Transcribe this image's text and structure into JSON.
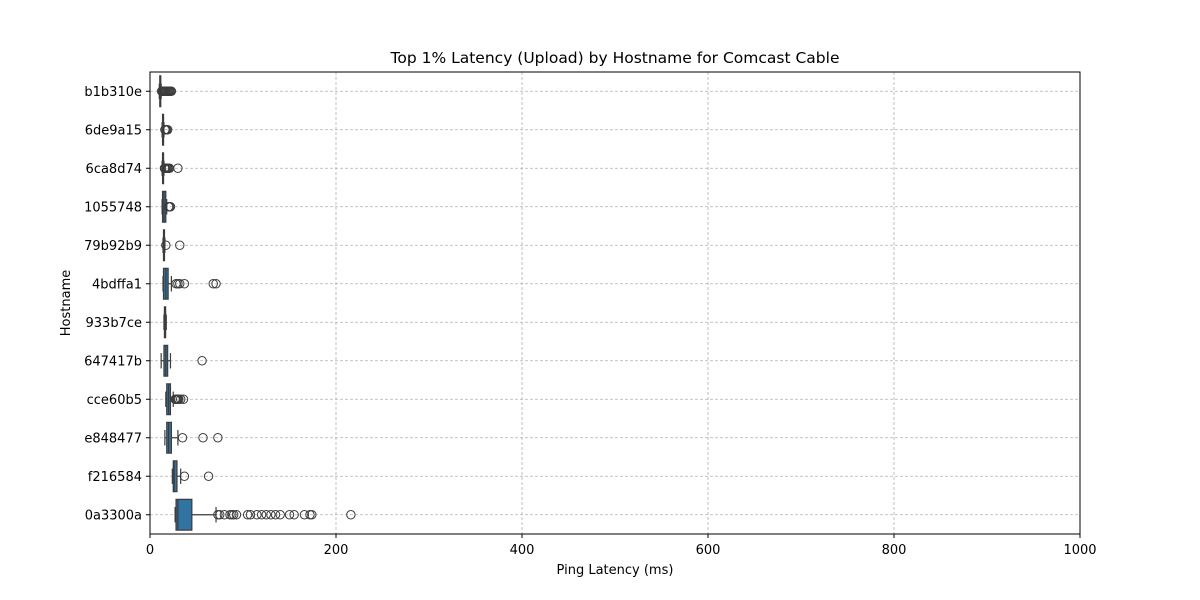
{
  "chart_data": {
    "type": "boxplot",
    "orientation": "horizontal",
    "title": "Top 1% Latency (Upload) by Hostname for Comcast Cable",
    "xlabel": "Ping Latency (ms)",
    "ylabel": "Hostname",
    "xlim": [
      0,
      1000
    ],
    "xticks": [
      0,
      200,
      400,
      600,
      800,
      1000
    ],
    "grid": true,
    "box_color": "#3274a1",
    "edge_color": "#3c3c3c",
    "grid_color": "#b0b0b0",
    "categories": [
      "b1b310e",
      "6de9a15",
      "6ca8d74",
      "1055748",
      "79b92b9",
      "4bdffa1",
      "933b7ce",
      "647417b",
      "cce60b5",
      "e848477",
      "f216584",
      "0a3300a"
    ],
    "boxes": [
      {
        "name": "b1b310e",
        "whislo": 10,
        "q1": 10.5,
        "med": 11,
        "q3": 11.5,
        "whishi": 12,
        "fliers": [
          12.5,
          13,
          14,
          15,
          16,
          17,
          18,
          19,
          20,
          21,
          22,
          23
        ]
      },
      {
        "name": "6de9a15",
        "whislo": 13,
        "q1": 13.5,
        "med": 14,
        "q3": 14.5,
        "whishi": 15,
        "fliers": [
          16,
          17,
          18,
          19
        ]
      },
      {
        "name": "6ca8d74",
        "whislo": 13,
        "q1": 13.5,
        "med": 14,
        "q3": 14.5,
        "whishi": 15,
        "fliers": [
          15.5,
          16,
          17,
          18,
          19,
          20,
          21,
          30
        ]
      },
      {
        "name": "1055748",
        "whislo": 13,
        "q1": 13.5,
        "med": 15,
        "q3": 17,
        "whishi": 18,
        "fliers": [
          20,
          21,
          22
        ]
      },
      {
        "name": "79b92b9",
        "whislo": 14,
        "q1": 14.5,
        "med": 15,
        "q3": 15.5,
        "whishi": 16,
        "fliers": [
          17,
          32
        ]
      },
      {
        "name": "4bdffa1",
        "whislo": 14,
        "q1": 14.5,
        "med": 17,
        "q3": 19.5,
        "whishi": 23,
        "fliers": [
          28,
          30,
          32,
          37,
          68,
          71
        ]
      },
      {
        "name": "933b7ce",
        "whislo": 15,
        "q1": 15.5,
        "med": 16,
        "q3": 16.8,
        "whishi": 17.5,
        "fliers": []
      },
      {
        "name": "647417b",
        "whislo": 12,
        "q1": 15,
        "med": 17,
        "q3": 19,
        "whishi": 22,
        "fliers": [
          56
        ]
      },
      {
        "name": "cce60b5",
        "whislo": 17,
        "q1": 18,
        "med": 20,
        "q3": 22,
        "whishi": 25,
        "fliers": [
          27,
          28,
          29,
          30,
          31,
          33,
          36
        ]
      },
      {
        "name": "e848477",
        "whislo": 16,
        "q1": 18,
        "med": 20,
        "q3": 23,
        "whishi": 30,
        "fliers": [
          35,
          57,
          73
        ]
      },
      {
        "name": "f216584",
        "whislo": 24,
        "q1": 25,
        "med": 26,
        "q3": 29,
        "whishi": 33,
        "fliers": [
          37,
          63
        ]
      },
      {
        "name": "0a3300a",
        "whislo": 27,
        "q1": 28,
        "med": 30,
        "q3": 45,
        "whishi": 71,
        "fliers": [
          73,
          75,
          80,
          86,
          88,
          90,
          93,
          105,
          108,
          115,
          120,
          125,
          130,
          135,
          140,
          150,
          155,
          166,
          172,
          174,
          216
        ]
      }
    ]
  }
}
